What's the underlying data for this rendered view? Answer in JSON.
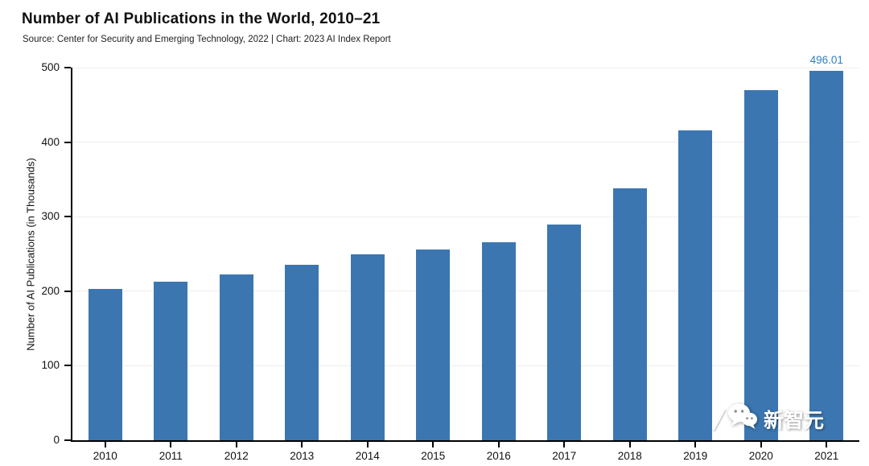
{
  "chart_data": {
    "type": "bar",
    "title": "Number of AI Publications in the World, 2010–21",
    "source": "Source: Center for Security and Emerging Technology, 2022 | Chart: 2023 AI Index Report",
    "ylabel": "Number of AI Publications (in Thousands)",
    "xlabel": "",
    "categories": [
      "2010",
      "2011",
      "2012",
      "2013",
      "2014",
      "2015",
      "2016",
      "2017",
      "2018",
      "2019",
      "2020",
      "2021"
    ],
    "values": [
      203,
      213,
      223,
      235,
      249,
      256,
      266,
      289,
      338,
      416,
      470,
      496.01
    ],
    "ylim": [
      0,
      500
    ],
    "yticks": [
      0,
      100,
      200,
      300,
      400,
      500
    ],
    "grid": true,
    "legend": false,
    "bar_color": "#3b76b1",
    "value_label_color": "#2e7fc2",
    "annotations": [
      {
        "category": "2021",
        "text": "496.01"
      }
    ]
  },
  "watermark": {
    "text": "新智元",
    "icon": "wechat-chat-bubbles-icon"
  }
}
